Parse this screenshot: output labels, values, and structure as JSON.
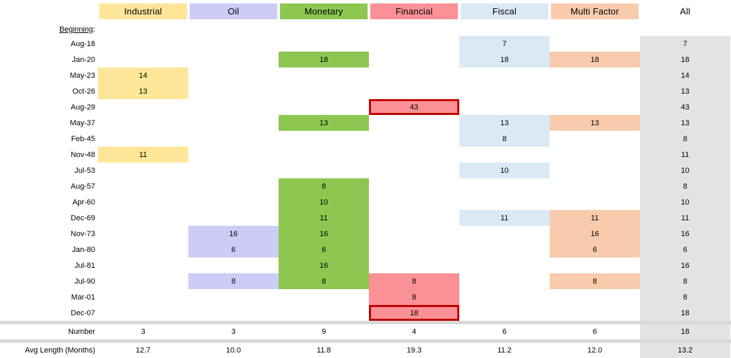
{
  "table": {
    "beginning_label": "Beginning",
    "beginning_colon": ":",
    "number_label": "Number",
    "avg_label": "Avg Length (Months)",
    "column_colors": [
      "#FFE699",
      "#CCCCF7",
      "#8DC751",
      "#FB9196",
      "#DBE9F6",
      "#F8CBAD",
      null
    ],
    "all_fill": "#E3E3E3",
    "highlight_border": "#C00000",
    "divider_color": "#D9D9D9"
  },
  "chart_data": {
    "type": "heatmap",
    "columns": [
      "Industrial",
      "Oil",
      "Monetary",
      "Financial",
      "Fiscal",
      "Multi Factor",
      "All"
    ],
    "rows": [
      "Aug-18",
      "Jan-20",
      "May-23",
      "Oct-26",
      "Aug-29",
      "May-37",
      "Feb-45",
      "Nov-48",
      "Jul-53",
      "Aug-57",
      "Apr-60",
      "Dec-69",
      "Nov-73",
      "Jan-80",
      "Jul-81",
      "Jul-90",
      "Mar-01",
      "Dec-07"
    ],
    "values": [
      [
        null,
        null,
        null,
        null,
        7,
        null,
        7
      ],
      [
        null,
        null,
        18,
        null,
        18,
        18,
        18
      ],
      [
        14,
        null,
        null,
        null,
        null,
        null,
        14
      ],
      [
        13,
        null,
        null,
        null,
        null,
        null,
        13
      ],
      [
        null,
        null,
        null,
        43,
        null,
        null,
        43
      ],
      [
        null,
        null,
        13,
        null,
        13,
        13,
        13
      ],
      [
        null,
        null,
        null,
        null,
        8,
        null,
        8
      ],
      [
        11,
        null,
        null,
        null,
        null,
        null,
        11
      ],
      [
        null,
        null,
        null,
        null,
        10,
        null,
        10
      ],
      [
        null,
        null,
        8,
        null,
        null,
        null,
        8
      ],
      [
        null,
        null,
        10,
        null,
        null,
        null,
        10
      ],
      [
        null,
        null,
        11,
        null,
        11,
        11,
        11
      ],
      [
        null,
        16,
        16,
        null,
        null,
        16,
        16
      ],
      [
        null,
        6,
        6,
        null,
        null,
        6,
        6
      ],
      [
        null,
        null,
        16,
        null,
        null,
        null,
        16
      ],
      [
        null,
        8,
        8,
        8,
        null,
        8,
        8
      ],
      [
        null,
        null,
        null,
        8,
        null,
        null,
        8
      ],
      [
        null,
        null,
        null,
        18,
        null,
        null,
        18
      ]
    ],
    "number": [
      3,
      3,
      9,
      4,
      6,
      6,
      18
    ],
    "avg_length_months": [
      "12.7",
      "10.0",
      "11.8",
      "19.3",
      "11.2",
      "12.0",
      "13.2"
    ],
    "highlights": [
      {
        "row": 4,
        "col": 3
      },
      {
        "row": 17,
        "col": 3
      }
    ],
    "grid": false,
    "legend_position": "top"
  }
}
